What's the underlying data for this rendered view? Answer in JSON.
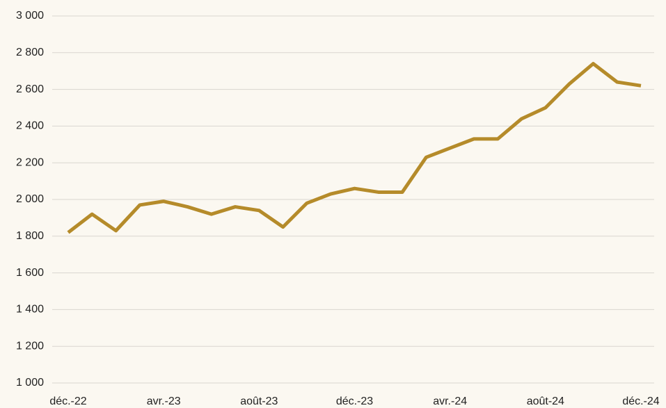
{
  "chart_data": {
    "type": "line",
    "categories": [
      "déc.-22",
      null,
      null,
      null,
      "avr.-23",
      null,
      null,
      null,
      "août-23",
      null,
      null,
      null,
      "déc.-23",
      null,
      null,
      null,
      "avr.-24",
      null,
      null,
      null,
      "août-24",
      null,
      null,
      null,
      "déc.-24"
    ],
    "series": [
      {
        "name": null,
        "color": "#b58b2a",
        "values": [
          1820,
          1920,
          1830,
          1970,
          1990,
          1960,
          1920,
          1960,
          1940,
          1850,
          1980,
          2030,
          2060,
          2040,
          2040,
          2230,
          2280,
          2330,
          2330,
          2440,
          2500,
          2630,
          2740,
          2640,
          2620
        ]
      }
    ],
    "ylim": [
      1000,
      3000
    ],
    "yticks": [
      {
        "value": 1000,
        "label": "1 000"
      },
      {
        "value": 1200,
        "label": "1 200"
      },
      {
        "value": 1400,
        "label": "1 400"
      },
      {
        "value": 1600,
        "label": "1 600"
      },
      {
        "value": 1800,
        "label": "1 800"
      },
      {
        "value": 2000,
        "label": "2 000"
      },
      {
        "value": 2200,
        "label": "2 200"
      },
      {
        "value": 2400,
        "label": "2 400"
      },
      {
        "value": 2600,
        "label": "2 600"
      },
      {
        "value": 2800,
        "label": "2 800"
      },
      {
        "value": 3000,
        "label": "3 000"
      }
    ],
    "grid": true
  }
}
